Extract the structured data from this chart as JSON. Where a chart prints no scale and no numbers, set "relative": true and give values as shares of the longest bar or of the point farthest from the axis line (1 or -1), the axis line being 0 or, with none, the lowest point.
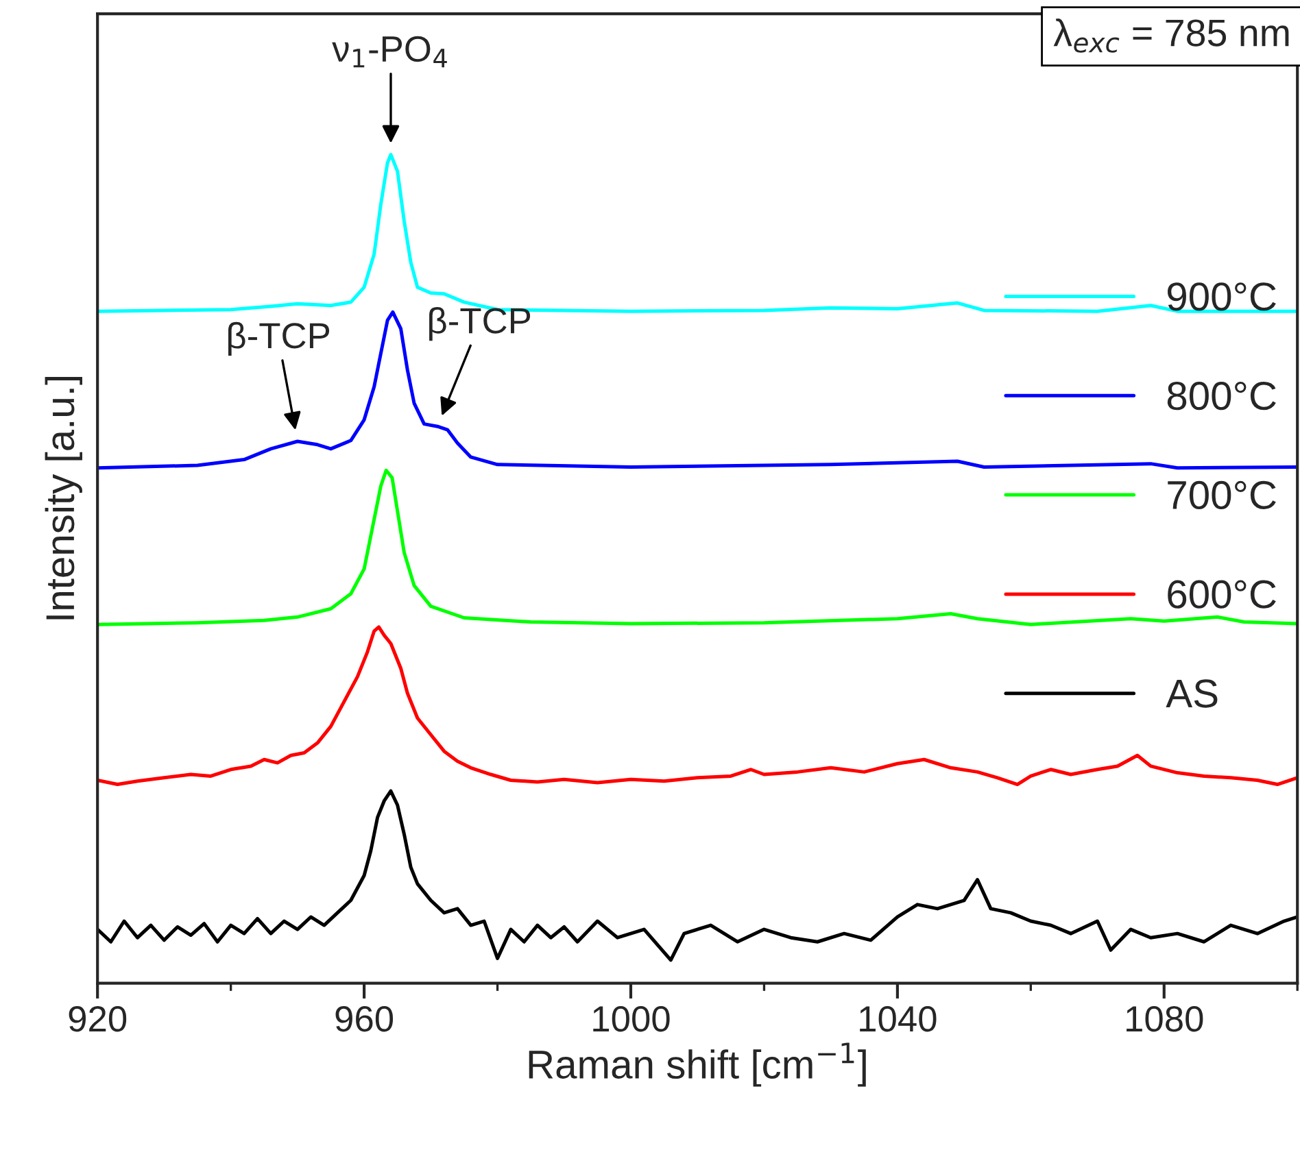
{
  "chart_data": {
    "type": "line",
    "relative": true,
    "xlabel": "Raman shift [cm$^{−1}$]",
    "ylabel": "Intensity [a.u.]",
    "xlim": [
      920,
      1100
    ],
    "xticks": [
      920,
      960,
      1000,
      1040,
      1080
    ],
    "legend": "right",
    "grid": false,
    "marker": "none",
    "line_style": "solid",
    "annotations": [
      "λ$_{exc}$ = 785 nm",
      {
        "text": "ν$_{1}$-PO$_{4}$",
        "x": 964,
        "y": 1.0
      },
      {
        "text": "β-TCP",
        "x": 950,
        "y": 0.654
      },
      {
        "text": "β-TCP",
        "x": 971,
        "y": 0.672
      }
    ],
    "series": [
      {
        "name": "900°C",
        "color": "#00ffff",
        "x": [
          920,
          940,
          946,
          950,
          955,
          958,
          960,
          961.5,
          962.5,
          963.5,
          964,
          965,
          966,
          967,
          968,
          970,
          972,
          975,
          980,
          1000,
          1020,
          1030,
          1040,
          1049,
          1053,
          1070,
          1078,
          1082,
          1100
        ],
        "values": [
          0.811,
          0.813,
          0.817,
          0.82,
          0.818,
          0.822,
          0.84,
          0.88,
          0.94,
          0.99,
          1.0,
          0.98,
          0.92,
          0.87,
          0.84,
          0.833,
          0.832,
          0.822,
          0.813,
          0.811,
          0.812,
          0.815,
          0.814,
          0.821,
          0.812,
          0.811,
          0.818,
          0.811,
          0.811
        ]
      },
      {
        "name": "800°C",
        "color": "#0000ff",
        "x": [
          920,
          935,
          942,
          946,
          950,
          953,
          955,
          958,
          960,
          961.5,
          962.5,
          963.5,
          964.3,
          965.5,
          966.5,
          967.5,
          969,
          971,
          972.5,
          974,
          976,
          980,
          1000,
          1030,
          1049,
          1053,
          1078,
          1082,
          1100
        ],
        "values": [
          0.622,
          0.625,
          0.632,
          0.645,
          0.654,
          0.65,
          0.645,
          0.655,
          0.68,
          0.72,
          0.76,
          0.8,
          0.81,
          0.79,
          0.74,
          0.7,
          0.675,
          0.672,
          0.668,
          0.652,
          0.635,
          0.626,
          0.623,
          0.626,
          0.63,
          0.623,
          0.627,
          0.622,
          0.623
        ]
      },
      {
        "name": "700°C",
        "color": "#00ff00",
        "x": [
          920,
          935,
          945,
          950,
          955,
          958,
          960,
          961.5,
          962.5,
          963.3,
          964.2,
          965,
          966,
          967.5,
          970,
          975,
          985,
          1000,
          1020,
          1040,
          1048,
          1052,
          1060,
          1075,
          1080,
          1088,
          1092,
          1100
        ],
        "values": [
          0.433,
          0.435,
          0.438,
          0.442,
          0.452,
          0.47,
          0.5,
          0.56,
          0.6,
          0.619,
          0.61,
          0.57,
          0.52,
          0.48,
          0.455,
          0.441,
          0.436,
          0.434,
          0.435,
          0.44,
          0.446,
          0.44,
          0.433,
          0.44,
          0.437,
          0.442,
          0.436,
          0.434
        ]
      },
      {
        "name": "600°C",
        "color": "#ff0000",
        "x": [
          920,
          923,
          926,
          930,
          934,
          937,
          940,
          943,
          945,
          947,
          949,
          951,
          953,
          955,
          957,
          959,
          960.5,
          961.5,
          962.2,
          963,
          964,
          965.5,
          966.5,
          968,
          970,
          972,
          974,
          976,
          979,
          982,
          986,
          990,
          995,
          1000,
          1005,
          1010,
          1015,
          1018,
          1020,
          1025,
          1030,
          1035,
          1040,
          1044,
          1048,
          1052,
          1055,
          1058,
          1060,
          1063,
          1066,
          1070,
          1073,
          1076,
          1078,
          1082,
          1086,
          1090,
          1094,
          1097,
          1100
        ],
        "values": [
          0.245,
          0.24,
          0.244,
          0.248,
          0.252,
          0.25,
          0.258,
          0.262,
          0.27,
          0.266,
          0.275,
          0.278,
          0.29,
          0.31,
          0.34,
          0.37,
          0.4,
          0.425,
          0.43,
          0.42,
          0.41,
          0.38,
          0.35,
          0.32,
          0.3,
          0.28,
          0.268,
          0.26,
          0.252,
          0.245,
          0.243,
          0.246,
          0.242,
          0.246,
          0.244,
          0.248,
          0.25,
          0.258,
          0.252,
          0.255,
          0.26,
          0.255,
          0.265,
          0.27,
          0.26,
          0.255,
          0.248,
          0.24,
          0.25,
          0.258,
          0.252,
          0.258,
          0.262,
          0.275,
          0.262,
          0.254,
          0.25,
          0.248,
          0.245,
          0.24,
          0.248
        ]
      },
      {
        "name": "AS",
        "color": "#000000",
        "x": [
          920,
          922,
          924,
          926,
          928,
          930,
          932,
          934,
          936,
          938,
          940,
          942,
          944,
          946,
          948,
          950,
          952,
          954,
          956,
          958,
          960,
          961,
          962,
          963,
          964,
          965,
          966,
          967,
          968,
          970,
          972,
          974,
          976,
          978,
          980,
          982,
          984,
          986,
          988,
          990,
          992,
          995,
          998,
          1002,
          1006,
          1008,
          1012,
          1016,
          1020,
          1024,
          1028,
          1032,
          1036,
          1040,
          1043,
          1046,
          1050,
          1052,
          1054,
          1057,
          1060,
          1063,
          1066,
          1070,
          1072,
          1075,
          1078,
          1082,
          1086,
          1090,
          1094,
          1098,
          1100
        ],
        "values": [
          0.065,
          0.05,
          0.075,
          0.055,
          0.07,
          0.052,
          0.068,
          0.058,
          0.072,
          0.05,
          0.07,
          0.06,
          0.078,
          0.06,
          0.075,
          0.065,
          0.08,
          0.07,
          0.085,
          0.1,
          0.13,
          0.16,
          0.2,
          0.22,
          0.232,
          0.215,
          0.18,
          0.14,
          0.12,
          0.1,
          0.085,
          0.09,
          0.07,
          0.075,
          0.03,
          0.065,
          0.05,
          0.07,
          0.055,
          0.068,
          0.05,
          0.075,
          0.055,
          0.065,
          0.028,
          0.06,
          0.07,
          0.05,
          0.065,
          0.055,
          0.05,
          0.06,
          0.052,
          0.08,
          0.095,
          0.09,
          0.1,
          0.125,
          0.09,
          0.085,
          0.075,
          0.07,
          0.06,
          0.075,
          0.04,
          0.065,
          0.055,
          0.06,
          0.05,
          0.07,
          0.06,
          0.075,
          0.08
        ]
      }
    ]
  }
}
